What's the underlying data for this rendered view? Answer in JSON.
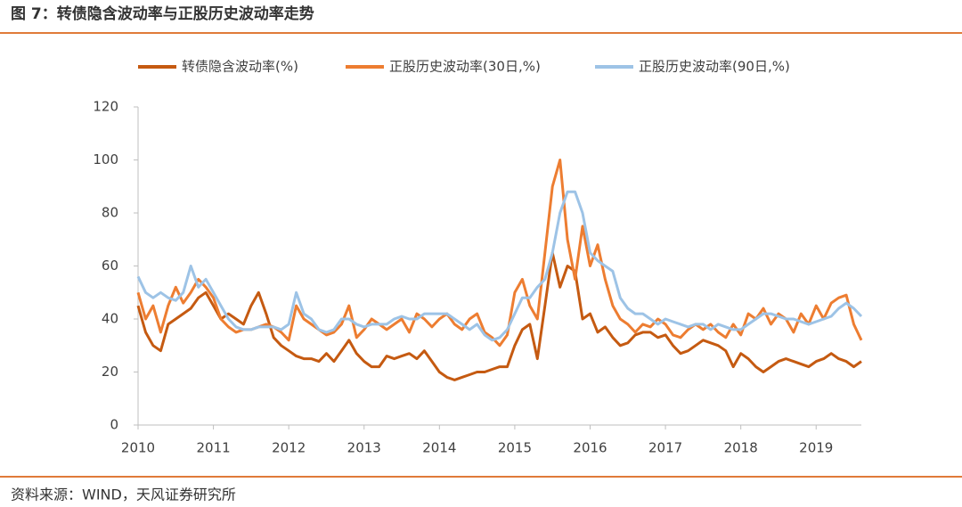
{
  "chart_data": {
    "type": "line",
    "title": "图 7：转债隐含波动率与正股历史波动率走势",
    "source": "资料来源：WIND，天风证券研究所",
    "x": [
      2010.0,
      2010.1,
      2010.2,
      2010.3,
      2010.4,
      2010.5,
      2010.6,
      2010.7,
      2010.8,
      2010.9,
      2011.0,
      2011.1,
      2011.2,
      2011.3,
      2011.4,
      2011.5,
      2011.6,
      2011.7,
      2011.8,
      2011.9,
      2012.0,
      2012.1,
      2012.2,
      2012.3,
      2012.4,
      2012.5,
      2012.6,
      2012.7,
      2012.8,
      2012.9,
      2013.0,
      2013.1,
      2013.2,
      2013.3,
      2013.4,
      2013.5,
      2013.6,
      2013.7,
      2013.8,
      2013.9,
      2014.0,
      2014.1,
      2014.2,
      2014.3,
      2014.4,
      2014.5,
      2014.6,
      2014.7,
      2014.8,
      2014.9,
      2015.0,
      2015.1,
      2015.2,
      2015.3,
      2015.4,
      2015.5,
      2015.6,
      2015.7,
      2015.8,
      2015.9,
      2016.0,
      2016.1,
      2016.2,
      2016.3,
      2016.4,
      2016.5,
      2016.6,
      2016.7,
      2016.8,
      2016.9,
      2017.0,
      2017.1,
      2017.2,
      2017.3,
      2017.4,
      2017.5,
      2017.6,
      2017.7,
      2017.8,
      2017.9,
      2018.0,
      2018.1,
      2018.2,
      2018.3,
      2018.4,
      2018.5,
      2018.6,
      2018.7,
      2018.8,
      2018.9,
      2019.0,
      2019.1,
      2019.2,
      2019.3,
      2019.4,
      2019.5,
      2019.6
    ],
    "series": [
      {
        "name": "转债隐含波动率(%)",
        "color": "#c55a11",
        "values": [
          45,
          35,
          30,
          28,
          38,
          40,
          42,
          44,
          48,
          50,
          45,
          40,
          42,
          40,
          38,
          45,
          50,
          42,
          33,
          30,
          28,
          26,
          25,
          25,
          24,
          27,
          24,
          28,
          32,
          27,
          24,
          22,
          22,
          26,
          25,
          26,
          27,
          25,
          28,
          24,
          20,
          18,
          17,
          18,
          19,
          20,
          20,
          21,
          22,
          22,
          30,
          36,
          38,
          25,
          45,
          65,
          52,
          60,
          58,
          40,
          42,
          35,
          37,
          33,
          30,
          31,
          34,
          35,
          35,
          33,
          34,
          30,
          27,
          28,
          30,
          32,
          31,
          30,
          28,
          22,
          27,
          25,
          22,
          20,
          22,
          24,
          25,
          24,
          23,
          22,
          24,
          25,
          27,
          25,
          24,
          22,
          24
        ]
      },
      {
        "name": "正股历史波动率(30日,%)",
        "color": "#ed7d31",
        "values": [
          50,
          40,
          45,
          35,
          45,
          52,
          46,
          50,
          55,
          52,
          48,
          40,
          37,
          35,
          36,
          36,
          37,
          38,
          37,
          35,
          32,
          45,
          40,
          38,
          36,
          34,
          35,
          38,
          45,
          33,
          36,
          40,
          38,
          36,
          38,
          40,
          35,
          42,
          40,
          37,
          40,
          42,
          38,
          36,
          40,
          42,
          35,
          33,
          30,
          34,
          50,
          55,
          45,
          40,
          65,
          90,
          100,
          70,
          55,
          75,
          60,
          68,
          55,
          45,
          40,
          38,
          35,
          38,
          37,
          40,
          38,
          34,
          33,
          36,
          38,
          36,
          38,
          35,
          33,
          38,
          34,
          42,
          40,
          44,
          38,
          42,
          40,
          35,
          42,
          38,
          45,
          40,
          46,
          48,
          49,
          38,
          32
        ]
      },
      {
        "name": "正股历史波动率(90日,%)",
        "color": "#9dc3e6",
        "values": [
          56,
          50,
          48,
          50,
          48,
          47,
          50,
          60,
          52,
          55,
          50,
          45,
          40,
          37,
          36,
          36,
          37,
          37,
          37,
          36,
          38,
          50,
          42,
          40,
          36,
          35,
          36,
          40,
          40,
          38,
          37,
          38,
          38,
          38,
          40,
          41,
          40,
          40,
          42,
          42,
          42,
          42,
          40,
          38,
          36,
          38,
          34,
          32,
          33,
          36,
          42,
          48,
          48,
          52,
          55,
          65,
          80,
          88,
          88,
          80,
          65,
          62,
          60,
          58,
          48,
          44,
          42,
          42,
          40,
          38,
          40,
          39,
          38,
          37,
          38,
          38,
          36,
          38,
          37,
          36,
          36,
          38,
          40,
          42,
          42,
          41,
          40,
          40,
          39,
          38,
          39,
          40,
          41,
          44,
          46,
          44,
          41
        ]
      }
    ],
    "xlim": [
      2010,
      2019.6
    ],
    "xticks": [
      2010,
      2011,
      2012,
      2013,
      2014,
      2015,
      2016,
      2017,
      2018,
      2019
    ],
    "ylim": [
      0,
      120
    ],
    "yticks": [
      0,
      20,
      40,
      60,
      80,
      100,
      120
    ],
    "grid": false,
    "legend": "top"
  }
}
